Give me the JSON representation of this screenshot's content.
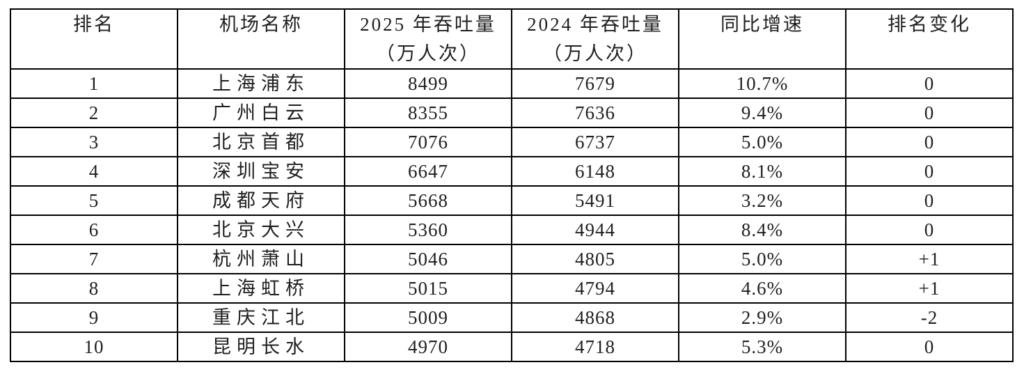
{
  "table": {
    "columns": [
      {
        "key": "rank",
        "label": "排名"
      },
      {
        "key": "airport",
        "label": "机场名称"
      },
      {
        "key": "t2025",
        "label": "2025 年吞吐量\n（万人次）"
      },
      {
        "key": "t2024",
        "label": "2024 年吞吐量\n（万人次）"
      },
      {
        "key": "yoy",
        "label": "同比增速"
      },
      {
        "key": "rank_change",
        "label": "排名变化"
      }
    ],
    "rows": [
      [
        "1",
        "上海浦东",
        "8499",
        "7679",
        "10.7%",
        "0"
      ],
      [
        "2",
        "广州白云",
        "8355",
        "7636",
        "9.4%",
        "0"
      ],
      [
        "3",
        "北京首都",
        "7076",
        "6737",
        "5.0%",
        "0"
      ],
      [
        "4",
        "深圳宝安",
        "6647",
        "6148",
        "8.1%",
        "0"
      ],
      [
        "5",
        "成都天府",
        "5668",
        "5491",
        "3.2%",
        "0"
      ],
      [
        "6",
        "北京大兴",
        "5360",
        "4944",
        "8.4%",
        "0"
      ],
      [
        "7",
        "杭州萧山",
        "5046",
        "4805",
        "5.0%",
        "+1"
      ],
      [
        "8",
        "上海虹桥",
        "5015",
        "4794",
        "4.6%",
        "+1"
      ],
      [
        "9",
        "重庆江北",
        "5009",
        "4868",
        "2.9%",
        "-2"
      ],
      [
        "10",
        "昆明长水",
        "4970",
        "4718",
        "5.3%",
        "0"
      ]
    ]
  },
  "chart_data": {
    "type": "table",
    "columns": [
      "排名",
      "机场名称",
      "2025 年吞吐量（万人次）",
      "2024 年吞吐量（万人次）",
      "同比增速",
      "排名变化"
    ],
    "rows": [
      [
        "1",
        "上海浦东",
        "8499",
        "7679",
        "10.7%",
        "0"
      ],
      [
        "2",
        "广州白云",
        "8355",
        "7636",
        "9.4%",
        "0"
      ],
      [
        "3",
        "北京首都",
        "7076",
        "6737",
        "5.0%",
        "0"
      ],
      [
        "4",
        "深圳宝安",
        "6647",
        "6148",
        "8.1%",
        "0"
      ],
      [
        "5",
        "成都天府",
        "5668",
        "5491",
        "3.2%",
        "0"
      ],
      [
        "6",
        "北京大兴",
        "5360",
        "4944",
        "8.4%",
        "0"
      ],
      [
        "7",
        "杭州萧山",
        "5046",
        "4805",
        "5.0%",
        "+1"
      ],
      [
        "8",
        "上海虹桥",
        "5015",
        "4794",
        "4.6%",
        "+1"
      ],
      [
        "9",
        "重庆江北",
        "5009",
        "4868",
        "2.9%",
        "-2"
      ],
      [
        "10",
        "昆明长水",
        "4970",
        "4718",
        "5.3%",
        "0"
      ]
    ]
  },
  "colors": {
    "background": "#ffffff",
    "border": "#000000",
    "text": "#1f1f1f"
  }
}
